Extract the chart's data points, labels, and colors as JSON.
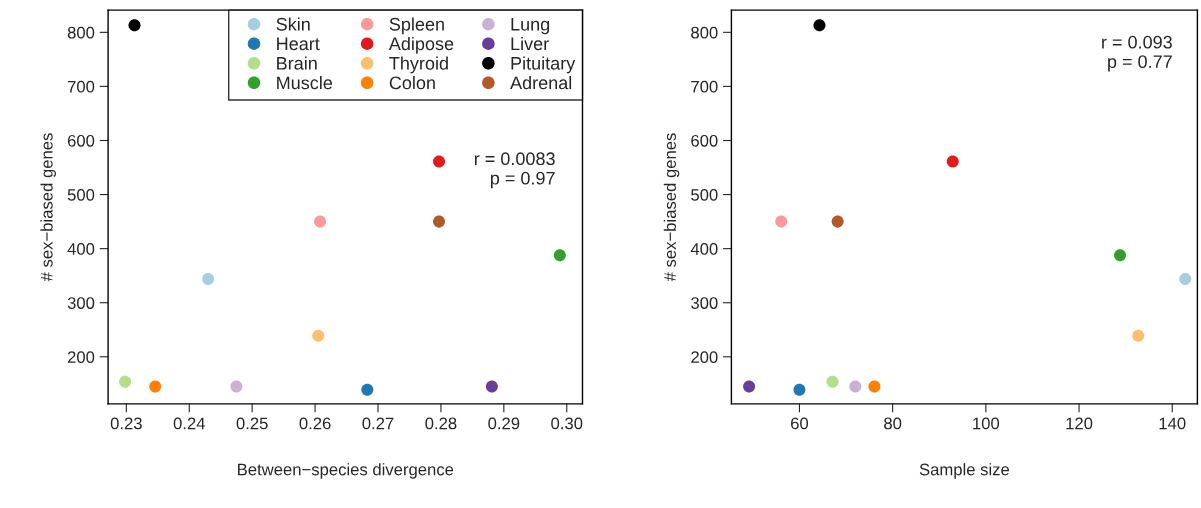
{
  "chart_data": [
    {
      "type": "scatter",
      "xlabel": "Between−species divergence",
      "ylabel": "# sex−biased genes",
      "xlim": [
        0.2271,
        0.3025
      ],
      "ylim": [
        113,
        841
      ],
      "xticks": [
        {
          "value": 0.23,
          "label": "0.23"
        },
        {
          "value": 0.24,
          "label": "0.24"
        },
        {
          "value": 0.25,
          "label": "0.25"
        },
        {
          "value": 0.26,
          "label": "0.26"
        },
        {
          "value": 0.27,
          "label": "0.27"
        },
        {
          "value": 0.28,
          "label": "0.28"
        },
        {
          "value": 0.29,
          "label": "0.29"
        },
        {
          "value": 0.3,
          "label": "0.30"
        }
      ],
      "yticks": [
        200,
        300,
        400,
        500,
        600,
        700,
        800
      ],
      "grid": false,
      "legend": "top right",
      "marker": "circle",
      "annotations": [
        "r = 0.0083\np = 0.97"
      ],
      "series": [
        {
          "name": "Skin",
          "color": "#a6cee3",
          "x": [
            0.243
          ],
          "values": [
            344
          ]
        },
        {
          "name": "Heart",
          "color": "#1f78b4",
          "x": [
            0.2683
          ],
          "values": [
            139
          ]
        },
        {
          "name": "Brain",
          "color": "#b2df8a",
          "x": [
            0.2298
          ],
          "values": [
            154
          ]
        },
        {
          "name": "Muscle",
          "color": "#33a02c",
          "x": [
            0.2989
          ],
          "values": [
            388
          ]
        },
        {
          "name": "Spleen",
          "color": "#fb9a99",
          "x": [
            0.2608
          ],
          "values": [
            450
          ]
        },
        {
          "name": "Adipose",
          "color": "#e31a1c",
          "x": [
            0.2797
          ],
          "values": [
            561
          ]
        },
        {
          "name": "Thyroid",
          "color": "#fdbf6f",
          "x": [
            0.2605
          ],
          "values": [
            239
          ]
        },
        {
          "name": "Colon",
          "color": "#ff7f00",
          "x": [
            0.2346
          ],
          "values": [
            145
          ]
        },
        {
          "name": "Lung",
          "color": "#cab2d6",
          "x": [
            0.2475
          ],
          "values": [
            145
          ]
        },
        {
          "name": "Liver",
          "color": "#6a3d9a",
          "x": [
            0.2881
          ],
          "values": [
            145
          ]
        },
        {
          "name": "Pituitary",
          "color": "#000000",
          "x": [
            0.2313
          ],
          "values": [
            813
          ]
        },
        {
          "name": "Adrenal",
          "color": "#b15928",
          "x": [
            0.2797
          ],
          "values": [
            450
          ]
        }
      ]
    },
    {
      "type": "scatter",
      "xlabel": "Sample size",
      "ylabel": "# sex−biased genes",
      "xlim": [
        45.4,
        145.4
      ],
      "ylim": [
        113,
        841
      ],
      "xticks": [
        60,
        80,
        100,
        120,
        140
      ],
      "yticks": [
        200,
        300,
        400,
        500,
        600,
        700,
        800
      ],
      "grid": false,
      "legend": false,
      "marker": "circle",
      "annotations": [
        "r = 0.093\np = 0.77"
      ],
      "series": [
        {
          "color": "#a6cee3",
          "x": [
            142.8
          ],
          "values": [
            344
          ]
        },
        {
          "color": "#1f78b4",
          "x": [
            60
          ],
          "values": [
            139
          ]
        },
        {
          "color": "#b2df8a",
          "x": [
            67.1
          ],
          "values": [
            154
          ]
        },
        {
          "color": "#33a02c",
          "x": [
            128.8
          ],
          "values": [
            388
          ]
        },
        {
          "color": "#fb9a99",
          "x": [
            56.1
          ],
          "values": [
            450
          ]
        },
        {
          "color": "#e31a1c",
          "x": [
            92.9
          ],
          "values": [
            561
          ]
        },
        {
          "color": "#fdbf6f",
          "x": [
            132.7
          ],
          "values": [
            239
          ]
        },
        {
          "color": "#ff7f00",
          "x": [
            76.1
          ],
          "values": [
            145
          ]
        },
        {
          "color": "#cab2d6",
          "x": [
            72
          ],
          "values": [
            145
          ]
        },
        {
          "color": "#6a3d9a",
          "x": [
            49.2
          ],
          "values": [
            145
          ]
        },
        {
          "color": "#000000",
          "x": [
            64.3
          ],
          "values": [
            813
          ]
        },
        {
          "color": "#b15928",
          "x": [
            68.2
          ],
          "values": [
            450
          ]
        }
      ]
    }
  ]
}
